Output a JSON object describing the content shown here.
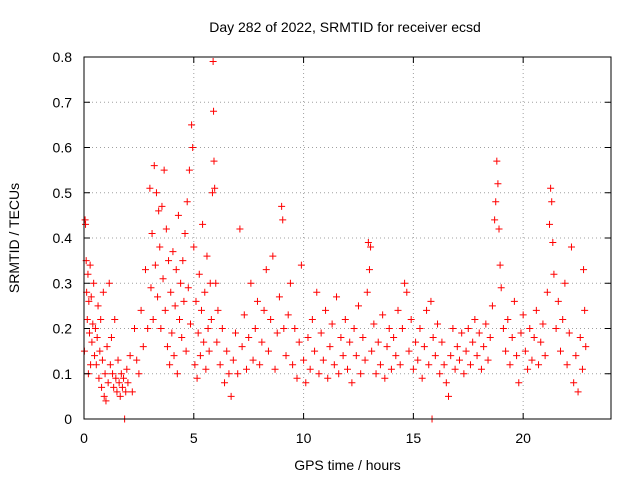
{
  "chart_data": {
    "type": "scatter",
    "title": "Day 282 of 2022, SRMTID for receiver ecsd",
    "xlabel": "GPS time / hours",
    "ylabel": "SRMTID / TECUs",
    "xlim": [
      0,
      24
    ],
    "ylim": [
      0,
      0.8
    ],
    "xticks": [
      0,
      5,
      10,
      15,
      20
    ],
    "yticks": [
      0,
      0.1,
      0.2,
      0.3,
      0.4,
      0.5,
      0.6,
      0.7,
      0.8
    ],
    "x_tick_labels": [
      "0",
      "5",
      "10",
      "15",
      "20"
    ],
    "y_tick_labels": [
      "0",
      "0.1",
      "0.2",
      "0.3",
      "0.4",
      "0.5",
      "0.6",
      "0.7",
      "0.8"
    ],
    "grid": true,
    "marker": "+",
    "color": "#ff0000",
    "series": [
      {
        "name": "SRMTID",
        "points": [
          [
            0.02,
            0.15
          ],
          [
            0.05,
            0.44
          ],
          [
            0.07,
            0.43
          ],
          [
            0.1,
            0.35
          ],
          [
            0.12,
            0.28
          ],
          [
            0.15,
            0.22
          ],
          [
            0.18,
            0.32
          ],
          [
            0.2,
            0.1
          ],
          [
            0.22,
            0.26
          ],
          [
            0.25,
            0.19
          ],
          [
            0.28,
            0.34
          ],
          [
            0.3,
            0.12
          ],
          [
            0.33,
            0.27
          ],
          [
            0.36,
            0.17
          ],
          [
            0.4,
            0.21
          ],
          [
            0.44,
            0.3
          ],
          [
            0.48,
            0.14
          ],
          [
            0.52,
            0.2
          ],
          [
            0.56,
            0.12
          ],
          [
            0.6,
            0.18
          ],
          [
            0.64,
            0.25
          ],
          [
            0.68,
            0.09
          ],
          [
            0.72,
            0.15
          ],
          [
            0.76,
            0.22
          ],
          [
            0.8,
            0.07
          ],
          [
            0.84,
            0.13
          ],
          [
            0.88,
            0.28
          ],
          [
            0.92,
            0.05
          ],
          [
            0.96,
            0.1
          ],
          [
            1.0,
            0.04
          ],
          [
            1.05,
            0.16
          ],
          [
            1.1,
            0.08
          ],
          [
            1.15,
            0.3
          ],
          [
            1.2,
            0.12
          ],
          [
            1.25,
            0.18
          ],
          [
            1.3,
            0.1
          ],
          [
            1.35,
            0.07
          ],
          [
            1.4,
            0.22
          ],
          [
            1.45,
            0.09
          ],
          [
            1.5,
            0.06
          ],
          [
            1.55,
            0.13
          ],
          [
            1.6,
            0.08
          ],
          [
            1.65,
            0.05
          ],
          [
            1.7,
            0.1
          ],
          [
            1.75,
            0.07
          ],
          [
            1.8,
            0.09
          ],
          [
            1.85,
            0.0
          ],
          [
            1.9,
            0.06
          ],
          [
            1.95,
            0.11
          ],
          [
            2.0,
            0.08
          ],
          [
            2.1,
            0.14
          ],
          [
            2.2,
            0.06
          ],
          [
            2.3,
            0.2
          ],
          [
            2.4,
            0.13
          ],
          [
            2.5,
            0.1
          ],
          [
            2.6,
            0.24
          ],
          [
            2.7,
            0.16
          ],
          [
            2.8,
            0.33
          ],
          [
            2.9,
            0.2
          ],
          [
            3.0,
            0.51
          ],
          [
            3.05,
            0.29
          ],
          [
            3.1,
            0.41
          ],
          [
            3.15,
            0.22
          ],
          [
            3.2,
            0.56
          ],
          [
            3.25,
            0.34
          ],
          [
            3.3,
            0.5
          ],
          [
            3.35,
            0.27
          ],
          [
            3.4,
            0.46
          ],
          [
            3.45,
            0.38
          ],
          [
            3.5,
            0.2
          ],
          [
            3.55,
            0.47
          ],
          [
            3.6,
            0.31
          ],
          [
            3.65,
            0.55
          ],
          [
            3.7,
            0.24
          ],
          [
            3.75,
            0.42
          ],
          [
            3.8,
            0.16
          ],
          [
            3.85,
            0.35
          ],
          [
            3.9,
            0.12
          ],
          [
            3.95,
            0.28
          ],
          [
            4.0,
            0.19
          ],
          [
            4.05,
            0.37
          ],
          [
            4.1,
            0.14
          ],
          [
            4.15,
            0.25
          ],
          [
            4.2,
            0.33
          ],
          [
            4.25,
            0.1
          ],
          [
            4.3,
            0.45
          ],
          [
            4.35,
            0.22
          ],
          [
            4.4,
            0.3
          ],
          [
            4.45,
            0.18
          ],
          [
            4.5,
            0.35
          ],
          [
            4.55,
            0.26
          ],
          [
            4.6,
            0.41
          ],
          [
            4.65,
            0.15
          ],
          [
            4.7,
            0.48
          ],
          [
            4.75,
            0.29
          ],
          [
            4.8,
            0.55
          ],
          [
            4.85,
            0.21
          ],
          [
            4.9,
            0.65
          ],
          [
            4.95,
            0.6
          ],
          [
            5.0,
            0.38
          ],
          [
            5.05,
            0.12
          ],
          [
            5.1,
            0.26
          ],
          [
            5.15,
            0.09
          ],
          [
            5.2,
            0.19
          ],
          [
            5.25,
            0.32
          ],
          [
            5.3,
            0.14
          ],
          [
            5.35,
            0.24
          ],
          [
            5.4,
            0.43
          ],
          [
            5.45,
            0.17
          ],
          [
            5.5,
            0.28
          ],
          [
            5.55,
            0.11
          ],
          [
            5.6,
            0.36
          ],
          [
            5.65,
            0.2
          ],
          [
            5.7,
            0.15
          ],
          [
            5.75,
            0.3
          ],
          [
            5.8,
            0.22
          ],
          [
            5.85,
            0.5
          ],
          [
            5.88,
            0.79
          ],
          [
            5.9,
            0.68
          ],
          [
            5.92,
            0.57
          ],
          [
            5.95,
            0.51
          ],
          [
            6.0,
            0.3
          ],
          [
            6.05,
            0.17
          ],
          [
            6.1,
            0.24
          ],
          [
            6.2,
            0.12
          ],
          [
            6.3,
            0.2
          ],
          [
            6.4,
            0.08
          ],
          [
            6.5,
            0.15
          ],
          [
            6.6,
            0.1
          ],
          [
            6.7,
            0.05
          ],
          [
            6.8,
            0.13
          ],
          [
            6.9,
            0.19
          ],
          [
            7.0,
            0.1
          ],
          [
            7.1,
            0.42
          ],
          [
            7.2,
            0.16
          ],
          [
            7.3,
            0.23
          ],
          [
            7.4,
            0.11
          ],
          [
            7.5,
            0.18
          ],
          [
            7.6,
            0.3
          ],
          [
            7.7,
            0.13
          ],
          [
            7.8,
            0.2
          ],
          [
            7.9,
            0.26
          ],
          [
            8.0,
            0.12
          ],
          [
            8.1,
            0.17
          ],
          [
            8.2,
            0.24
          ],
          [
            8.3,
            0.33
          ],
          [
            8.4,
            0.15
          ],
          [
            8.5,
            0.22
          ],
          [
            8.6,
            0.36
          ],
          [
            8.7,
            0.11
          ],
          [
            8.8,
            0.19
          ],
          [
            8.9,
            0.27
          ],
          [
            9.0,
            0.47
          ],
          [
            9.05,
            0.44
          ],
          [
            9.1,
            0.2
          ],
          [
            9.2,
            0.14
          ],
          [
            9.3,
            0.23
          ],
          [
            9.4,
            0.3
          ],
          [
            9.5,
            0.12
          ],
          [
            9.6,
            0.2
          ],
          [
            9.7,
            0.09
          ],
          [
            9.8,
            0.17
          ],
          [
            9.9,
            0.34
          ],
          [
            10.0,
            0.13
          ],
          [
            10.1,
            0.08
          ],
          [
            10.2,
            0.18
          ],
          [
            10.3,
            0.11
          ],
          [
            10.4,
            0.22
          ],
          [
            10.5,
            0.15
          ],
          [
            10.6,
            0.28
          ],
          [
            10.7,
            0.1
          ],
          [
            10.8,
            0.19
          ],
          [
            10.9,
            0.13
          ],
          [
            11.0,
            0.24
          ],
          [
            11.1,
            0.09
          ],
          [
            11.2,
            0.16
          ],
          [
            11.3,
            0.21
          ],
          [
            11.4,
            0.12
          ],
          [
            11.5,
            0.27
          ],
          [
            11.6,
            0.1
          ],
          [
            11.7,
            0.18
          ],
          [
            11.8,
            0.14
          ],
          [
            11.9,
            0.22
          ],
          [
            12.0,
            0.11
          ],
          [
            12.1,
            0.17
          ],
          [
            12.2,
            0.08
          ],
          [
            12.3,
            0.2
          ],
          [
            12.4,
            0.14
          ],
          [
            12.5,
            0.25
          ],
          [
            12.6,
            0.1
          ],
          [
            12.7,
            0.18
          ],
          [
            12.8,
            0.13
          ],
          [
            12.9,
            0.28
          ],
          [
            12.95,
            0.39
          ],
          [
            13.0,
            0.33
          ],
          [
            13.05,
            0.38
          ],
          [
            13.1,
            0.15
          ],
          [
            13.2,
            0.21
          ],
          [
            13.3,
            0.1
          ],
          [
            13.4,
            0.17
          ],
          [
            13.5,
            0.12
          ],
          [
            13.6,
            0.23
          ],
          [
            13.7,
            0.09
          ],
          [
            13.8,
            0.16
          ],
          [
            13.9,
            0.2
          ],
          [
            14.0,
            0.11
          ],
          [
            14.1,
            0.18
          ],
          [
            14.2,
            0.14
          ],
          [
            14.3,
            0.24
          ],
          [
            14.4,
            0.12
          ],
          [
            14.5,
            0.2
          ],
          [
            14.6,
            0.3
          ],
          [
            14.7,
            0.28
          ],
          [
            14.8,
            0.15
          ],
          [
            14.9,
            0.22
          ],
          [
            15.0,
            0.11
          ],
          [
            15.1,
            0.17
          ],
          [
            15.2,
            0.13
          ],
          [
            15.3,
            0.2
          ],
          [
            15.4,
            0.09
          ],
          [
            15.5,
            0.16
          ],
          [
            15.6,
            0.24
          ],
          [
            15.7,
            0.12
          ],
          [
            15.8,
            0.26
          ],
          [
            15.85,
            0.0
          ],
          [
            15.9,
            0.18
          ],
          [
            16.0,
            0.14
          ],
          [
            16.1,
            0.21
          ],
          [
            16.2,
            0.1
          ],
          [
            16.3,
            0.17
          ],
          [
            16.4,
            0.12
          ],
          [
            16.5,
            0.08
          ],
          [
            16.6,
            0.05
          ],
          [
            16.7,
            0.14
          ],
          [
            16.8,
            0.2
          ],
          [
            16.9,
            0.11
          ],
          [
            17.0,
            0.16
          ],
          [
            17.1,
            0.13
          ],
          [
            17.2,
            0.19
          ],
          [
            17.3,
            0.1
          ],
          [
            17.4,
            0.15
          ],
          [
            17.5,
            0.2
          ],
          [
            17.6,
            0.12
          ],
          [
            17.7,
            0.17
          ],
          [
            17.8,
            0.22
          ],
          [
            17.9,
            0.14
          ],
          [
            18.0,
            0.19
          ],
          [
            18.1,
            0.11
          ],
          [
            18.2,
            0.16
          ],
          [
            18.3,
            0.21
          ],
          [
            18.4,
            0.13
          ],
          [
            18.5,
            0.18
          ],
          [
            18.6,
            0.25
          ],
          [
            18.7,
            0.44
          ],
          [
            18.75,
            0.48
          ],
          [
            18.8,
            0.57
          ],
          [
            18.85,
            0.52
          ],
          [
            18.9,
            0.42
          ],
          [
            18.95,
            0.34
          ],
          [
            19.0,
            0.29
          ],
          [
            19.1,
            0.2
          ],
          [
            19.2,
            0.15
          ],
          [
            19.3,
            0.22
          ],
          [
            19.4,
            0.12
          ],
          [
            19.5,
            0.18
          ],
          [
            19.6,
            0.26
          ],
          [
            19.7,
            0.14
          ],
          [
            19.8,
            0.08
          ],
          [
            19.9,
            0.19
          ],
          [
            20.0,
            0.23
          ],
          [
            20.1,
            0.15
          ],
          [
            20.2,
            0.11
          ],
          [
            20.3,
            0.2
          ],
          [
            20.4,
            0.13
          ],
          [
            20.5,
            0.18
          ],
          [
            20.6,
            0.24
          ],
          [
            20.7,
            0.12
          ],
          [
            20.8,
            0.17
          ],
          [
            20.9,
            0.21
          ],
          [
            21.0,
            0.14
          ],
          [
            21.1,
            0.28
          ],
          [
            21.2,
            0.43
          ],
          [
            21.25,
            0.51
          ],
          [
            21.3,
            0.48
          ],
          [
            21.35,
            0.39
          ],
          [
            21.4,
            0.32
          ],
          [
            21.5,
            0.2
          ],
          [
            21.6,
            0.26
          ],
          [
            21.7,
            0.15
          ],
          [
            21.8,
            0.22
          ],
          [
            21.9,
            0.3
          ],
          [
            22.0,
            0.12
          ],
          [
            22.1,
            0.19
          ],
          [
            22.2,
            0.38
          ],
          [
            22.3,
            0.08
          ],
          [
            22.4,
            0.14
          ],
          [
            22.5,
            0.06
          ],
          [
            22.6,
            0.18
          ],
          [
            22.7,
            0.11
          ],
          [
            22.75,
            0.33
          ],
          [
            22.8,
            0.24
          ],
          [
            22.85,
            0.16
          ]
        ]
      }
    ]
  }
}
